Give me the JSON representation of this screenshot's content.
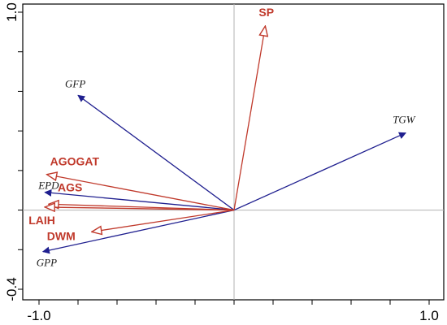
{
  "chart_data": {
    "type": "biplot",
    "xlim": [
      -1.0,
      1.0
    ],
    "ylim": [
      -0.4,
      1.0
    ],
    "x_tick_labels": [
      {
        "value": -1.0,
        "label": "-1.0"
      },
      {
        "value": 1.0,
        "label": "1.0"
      }
    ],
    "y_tick_labels": [
      {
        "value": -0.4,
        "label": "-0.4"
      },
      {
        "value": 1.0,
        "label": "1.0"
      }
    ],
    "x_minor_ticks": [
      -1.0,
      -0.8,
      -0.6,
      -0.4,
      -0.2,
      0.0,
      0.2,
      0.4,
      0.6,
      0.8,
      1.0
    ],
    "y_minor_ticks": [
      -0.4,
      -0.2,
      0.0,
      0.2,
      0.4,
      0.6,
      0.8,
      1.0
    ],
    "reference_lines": {
      "x": 0.0,
      "y": 0.0
    },
    "series": [
      {
        "style": "environmental",
        "color": "#1f1f8f",
        "arrow": "filled",
        "vectors": [
          {
            "label": "GFP",
            "x": -0.8,
            "y": 0.58
          },
          {
            "label": "TGW",
            "x": 0.88,
            "y": 0.39
          },
          {
            "label": "EPD",
            "x": -0.97,
            "y": 0.09
          },
          {
            "label": "GPP",
            "x": -0.98,
            "y": -0.21
          }
        ]
      },
      {
        "style": "response",
        "color": "#c0392b",
        "arrow": "open",
        "vectors": [
          {
            "label": "SP",
            "x": 0.16,
            "y": 0.93
          },
          {
            "label": "AGOGAT",
            "x": -0.96,
            "y": 0.18
          },
          {
            "label": "AGS",
            "x": -0.95,
            "y": 0.03
          },
          {
            "label": "LAIH",
            "x": -0.97,
            "y": 0.015
          },
          {
            "label": "DWM",
            "x": -0.73,
            "y": -0.11
          }
        ]
      }
    ]
  }
}
